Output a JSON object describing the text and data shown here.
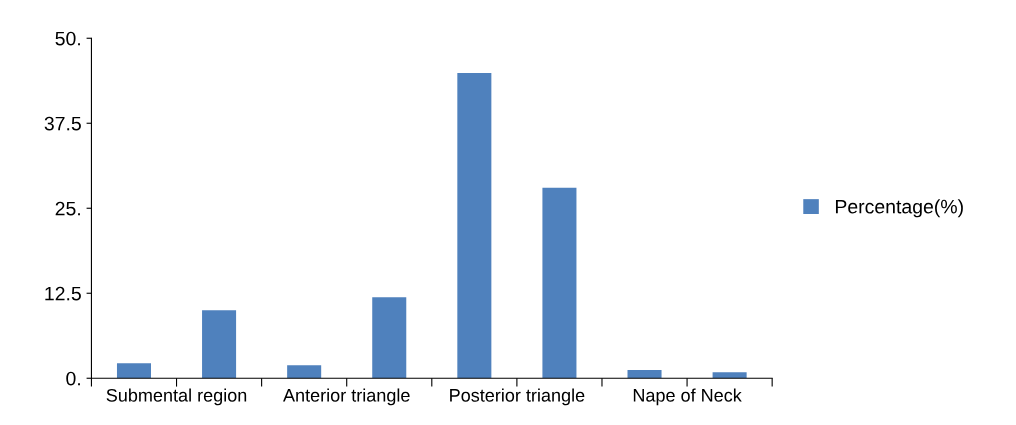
{
  "chart_data": {
    "type": "bar",
    "categories": [
      "Submental region",
      null,
      "Anterior triangle",
      null,
      "Posterior triangle",
      null,
      "Nape of Neck",
      null
    ],
    "series": [
      {
        "name": "Percentage(%)",
        "color": "#4f81bd",
        "values": [
          2.2,
          10.0,
          1.9,
          11.9,
          44.9,
          28.0,
          1.2,
          0.9
        ]
      }
    ],
    "ylim": [
      0,
      50
    ],
    "yticks": [
      {
        "value": 0,
        "label": "0."
      },
      {
        "value": 12.5,
        "label": "12.5"
      },
      {
        "value": 25,
        "label": "25."
      },
      {
        "value": 37.5,
        "label": "37.5"
      },
      {
        "value": 50,
        "label": "50."
      }
    ],
    "grid": false,
    "legend": "right"
  }
}
